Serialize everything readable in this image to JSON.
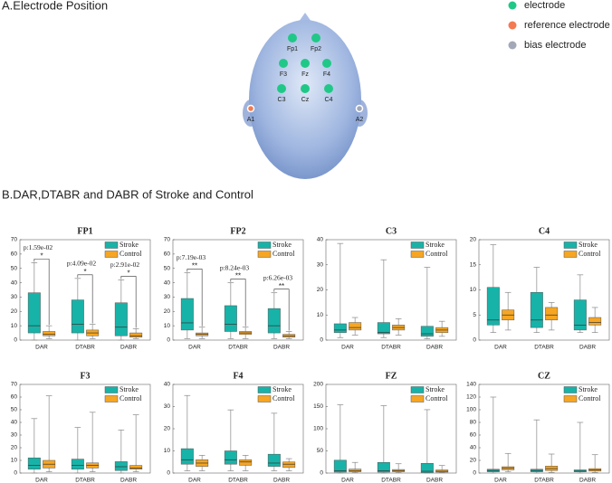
{
  "panel_a": {
    "title": "A.Electrode Position",
    "legend": [
      {
        "label": "electrode",
        "color": "#20c887",
        "electrodes": [
          "Fp1",
          "Fp2",
          "F3",
          "Fz",
          "F4",
          "C3",
          "Cz",
          "C4"
        ]
      },
      {
        "label": "reference electrode",
        "color": "#f47a4f",
        "electrodes": [
          "A1"
        ]
      },
      {
        "label": "bias electrode",
        "color": "#a3a8b8",
        "electrodes": [
          "A2"
        ]
      }
    ]
  },
  "panel_b_title": "B.DAR,DTABR and DABR of Stroke and Control",
  "chart_data": [
    {
      "type": "box",
      "title": "FP1",
      "categories": [
        "DAR",
        "DTABR",
        "DABR"
      ],
      "ylim": [
        0,
        70
      ],
      "yticks": [
        0,
        10,
        20,
        30,
        40,
        50,
        60,
        70
      ],
      "series": [
        {
          "name": "Stroke",
          "color": "#17b3a8",
          "values": [
            [
              0,
              5,
              10,
              33,
              54
            ],
            [
              0,
              5,
              11,
              28,
              43
            ],
            [
              0,
              3,
              9,
              26,
              42
            ]
          ]
        },
        {
          "name": "Control",
          "color": "#f6a623",
          "values": [
            [
              1,
              3,
              4,
              6,
              10
            ],
            [
              1,
              3,
              5,
              7,
              11
            ],
            [
              1,
              2,
              3,
              5,
              8
            ]
          ]
        }
      ],
      "annotations": [
        {
          "p": "p:1.59e-02",
          "star": "*"
        },
        {
          "p": "p:4.09e-02",
          "star": "*"
        },
        {
          "p": "p:2.91e-02",
          "star": "*"
        }
      ]
    },
    {
      "type": "box",
      "title": "FP2",
      "categories": [
        "DAR",
        "DTABR",
        "DABR"
      ],
      "ylim": [
        0,
        70
      ],
      "yticks": [
        0,
        10,
        20,
        30,
        40,
        50,
        60,
        70
      ],
      "series": [
        {
          "name": "Stroke",
          "color": "#17b3a8",
          "values": [
            [
              1,
              7,
              12,
              29,
              47
            ],
            [
              1,
              6,
              11,
              24,
              40
            ],
            [
              1,
              5,
              10,
              22,
              33
            ]
          ]
        },
        {
          "name": "Control",
          "color": "#f6a623",
          "values": [
            [
              1,
              3,
              4,
              5,
              9
            ],
            [
              1,
              4,
              5,
              6,
              9
            ],
            [
              1,
              2,
              3,
              4,
              6
            ]
          ]
        }
      ],
      "annotations": [
        {
          "p": "p:7.19e-03",
          "star": "**"
        },
        {
          "p": "p:8.24e-03",
          "star": "**"
        },
        {
          "p": "p:6.26e-03",
          "star": "**"
        }
      ]
    },
    {
      "type": "box",
      "title": "C3",
      "categories": [
        "DAR",
        "DTABR",
        "DABR"
      ],
      "ylim": [
        0,
        40
      ],
      "yticks": [
        0,
        10,
        20,
        30,
        40
      ],
      "series": [
        {
          "name": "Stroke",
          "color": "#17b3a8",
          "values": [
            [
              1,
              3,
              4,
              6.5,
              38.5
            ],
            [
              1,
              2.5,
              3,
              7,
              32
            ],
            [
              0.5,
              1.5,
              2.5,
              5.5,
              29
            ]
          ]
        },
        {
          "name": "Control",
          "color": "#f6a623",
          "values": [
            [
              2,
              4,
              5,
              7,
              9
            ],
            [
              2,
              4,
              5,
              6,
              8.5
            ],
            [
              1.5,
              3,
              4,
              5,
              7.5
            ]
          ]
        }
      ]
    },
    {
      "type": "box",
      "title": "C4",
      "categories": [
        "DAR",
        "DTABR",
        "DABR"
      ],
      "ylim": [
        0,
        20
      ],
      "yticks": [
        0,
        5,
        10,
        15,
        20
      ],
      "series": [
        {
          "name": "Stroke",
          "color": "#17b3a8",
          "values": [
            [
              1.5,
              3,
              4,
              10.5,
              19
            ],
            [
              1.5,
              2.5,
              4,
              9.5,
              14.5
            ],
            [
              1.5,
              2,
              3,
              8,
              13
            ]
          ]
        },
        {
          "name": "Control",
          "color": "#f6a623",
          "values": [
            [
              2,
              4,
              5,
              6,
              9.5
            ],
            [
              2,
              4,
              5,
              6.5,
              7.5
            ],
            [
              1.5,
              3,
              3.5,
              4.5,
              6.5
            ]
          ]
        }
      ]
    },
    {
      "type": "box",
      "title": "F3",
      "categories": [
        "DAR",
        "DTABR",
        "DABR"
      ],
      "ylim": [
        0,
        70
      ],
      "yticks": [
        0,
        10,
        20,
        30,
        40,
        50,
        60,
        70
      ],
      "series": [
        {
          "name": "Stroke",
          "color": "#17b3a8",
          "values": [
            [
              0,
              3,
              6,
              12,
              43
            ],
            [
              0,
              3,
              6,
              11,
              36
            ],
            [
              0,
              2,
              5,
              9,
              34
            ]
          ]
        },
        {
          "name": "Control",
          "color": "#f6a623",
          "values": [
            [
              1,
              4,
              7,
              10,
              61
            ],
            [
              1,
              4,
              6,
              8,
              48
            ],
            [
              1,
              3,
              4,
              6,
              46
            ]
          ]
        }
      ]
    },
    {
      "type": "box",
      "title": "F4",
      "categories": [
        "DAR",
        "DTABR",
        "DABR"
      ],
      "ylim": [
        0,
        40
      ],
      "yticks": [
        0,
        10,
        20,
        30,
        40
      ],
      "series": [
        {
          "name": "Stroke",
          "color": "#17b3a8",
          "values": [
            [
              1,
              4,
              6,
              11,
              35
            ],
            [
              1,
              4,
              6,
              10,
              28.5
            ],
            [
              1,
              3,
              4.5,
              8.5,
              27
            ]
          ]
        },
        {
          "name": "Control",
          "color": "#f6a623",
          "values": [
            [
              1,
              3,
              4.5,
              6,
              8
            ],
            [
              1,
              3.5,
              5,
              6,
              8
            ],
            [
              1,
              2.5,
              4,
              5,
              6.5
            ]
          ]
        }
      ]
    },
    {
      "type": "box",
      "title": "FZ",
      "categories": [
        "DAR",
        "DTABR",
        "DABR"
      ],
      "ylim": [
        0,
        200
      ],
      "yticks": [
        0,
        50,
        100,
        150,
        200
      ],
      "series": [
        {
          "name": "Stroke",
          "color": "#17b3a8",
          "values": [
            [
              0,
              2,
              5,
              29,
              154
            ],
            [
              0,
              2,
              5,
              24,
              152
            ],
            [
              0,
              1,
              4,
              22,
              143
            ]
          ]
        },
        {
          "name": "Control",
          "color": "#f6a623",
          "values": [
            [
              1,
              3,
              5,
              9,
              24
            ],
            [
              1,
              3,
              5,
              8,
              21
            ],
            [
              1,
              2,
              4,
              7,
              17
            ]
          ]
        }
      ]
    },
    {
      "type": "box",
      "title": "CZ",
      "categories": [
        "DAR",
        "DTABR",
        "DABR"
      ],
      "ylim": [
        0,
        140
      ],
      "yticks": [
        0,
        20,
        40,
        60,
        80,
        100,
        120,
        140
      ],
      "series": [
        {
          "name": "Stroke",
          "color": "#17b3a8",
          "values": [
            [
              0,
              2,
              4,
              6,
              120
            ],
            [
              0,
              2,
              4,
              6,
              84
            ],
            [
              0,
              2,
              3,
              5,
              80
            ]
          ]
        },
        {
          "name": "Control",
          "color": "#f6a623",
          "values": [
            [
              2,
              5,
              8,
              10,
              31
            ],
            [
              1,
              4,
              7,
              11,
              30
            ],
            [
              1,
              3,
              5,
              7,
              29
            ]
          ]
        }
      ]
    }
  ]
}
